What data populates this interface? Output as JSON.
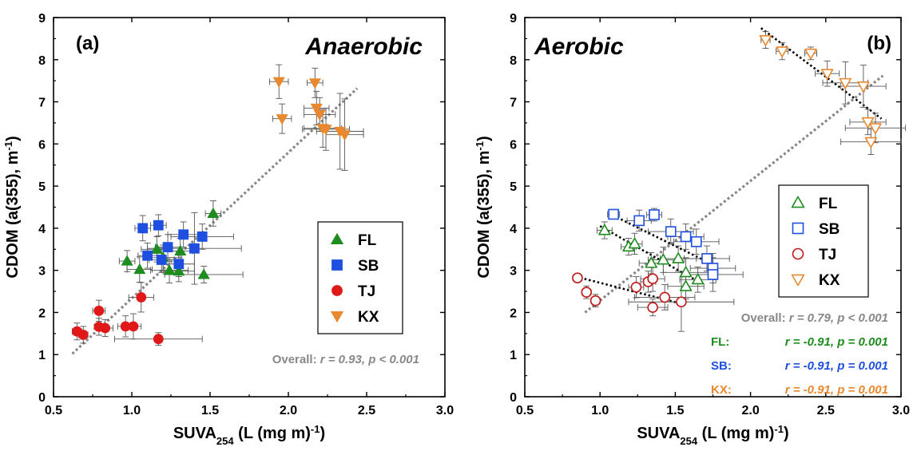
{
  "chart_data": [
    {
      "type": "scatter",
      "panel_label": "(a)",
      "condition_label": "Anaerobic",
      "xlabel_main": "SUVA",
      "xlabel_sub": "254",
      "xlabel_tail": " (L (mg m)",
      "xlabel_sup": "-1",
      "xlabel_end": ")",
      "ylabel_main": "CDOM (a(355), m",
      "ylabel_sup": "-1",
      "ylabel_end": ")",
      "xlim": [
        0.5,
        3.0
      ],
      "ylim": [
        0,
        9
      ],
      "xticks": [
        "0.5",
        "1.0",
        "1.5",
        "2.0",
        "2.5",
        "3.0"
      ],
      "yticks": [
        "0",
        "1",
        "2",
        "3",
        "4",
        "5",
        "6",
        "7",
        "8",
        "9"
      ],
      "legend_position": "center-right",
      "grid": false,
      "colors": {
        "FL": "#1e8c1e",
        "SB": "#1f4fe0",
        "TJ": "#e01818",
        "KX": "#e8892f",
        "overall": "#888888"
      },
      "marker_style": "filled",
      "series": [
        {
          "name": "FL",
          "marker": "triangle-up",
          "points": [
            {
              "x": 0.97,
              "y": 3.22,
              "xe": 0.05,
              "ye": 0.25
            },
            {
              "x": 1.05,
              "y": 3.02,
              "xe": 0.08,
              "ye": 0.3
            },
            {
              "x": 1.16,
              "y": 3.5,
              "xe": 0.1,
              "ye": 0.3
            },
            {
              "x": 1.2,
              "y": 3.3,
              "xe": 0.12,
              "ye": 0.3
            },
            {
              "x": 1.24,
              "y": 3.0,
              "xe": 0.12,
              "ye": 0.3
            },
            {
              "x": 1.3,
              "y": 2.98,
              "xe": 0.1,
              "ye": 0.25
            },
            {
              "x": 1.31,
              "y": 3.46,
              "xe": 0.08,
              "ye": 0.3
            },
            {
              "x": 1.46,
              "y": 2.9,
              "xe": 0.25,
              "ye": 0.2
            },
            {
              "x": 1.52,
              "y": 4.35,
              "xe": 0.05,
              "ye": 0.3
            }
          ]
        },
        {
          "name": "SB",
          "marker": "square",
          "points": [
            {
              "x": 1.07,
              "y": 4.0,
              "xe": 0.05,
              "ye": 0.3
            },
            {
              "x": 1.1,
              "y": 3.35,
              "xe": 0.06,
              "ye": 0.3
            },
            {
              "x": 1.17,
              "y": 4.07,
              "xe": 0.05,
              "ye": 0.25
            },
            {
              "x": 1.19,
              "y": 3.25,
              "xe": 0.08,
              "ye": 0.3
            },
            {
              "x": 1.23,
              "y": 3.55,
              "xe": 0.08,
              "ye": 0.3
            },
            {
              "x": 1.3,
              "y": 3.15,
              "xe": 0.1,
              "ye": 0.3
            },
            {
              "x": 1.33,
              "y": 3.85,
              "xe": 0.1,
              "ye": 0.3
            },
            {
              "x": 1.4,
              "y": 3.52,
              "xe": 0.3,
              "ye": 0.85
            },
            {
              "x": 1.45,
              "y": 3.8,
              "xe": 0.2,
              "ye": 0.3
            }
          ]
        },
        {
          "name": "TJ",
          "marker": "circle",
          "points": [
            {
              "x": 0.65,
              "y": 1.55,
              "xe": 0.03,
              "ye": 0.2
            },
            {
              "x": 0.69,
              "y": 1.47,
              "xe": 0.03,
              "ye": 0.2
            },
            {
              "x": 0.79,
              "y": 2.04,
              "xe": 0.04,
              "ye": 0.25
            },
            {
              "x": 0.79,
              "y": 1.66,
              "xe": 0.03,
              "ye": 0.2
            },
            {
              "x": 0.83,
              "y": 1.63,
              "xe": 0.05,
              "ye": 0.2
            },
            {
              "x": 0.96,
              "y": 1.67,
              "xe": 0.05,
              "ye": 0.25
            },
            {
              "x": 1.01,
              "y": 1.67,
              "xe": 0.05,
              "ye": 0.3
            },
            {
              "x": 1.06,
              "y": 2.36,
              "xe": 0.08,
              "ye": 0.35
            },
            {
              "x": 1.17,
              "y": 1.37,
              "xe": 0.28,
              "ye": 0.15
            }
          ]
        },
        {
          "name": "KX",
          "marker": "triangle-down",
          "points": [
            {
              "x": 1.94,
              "y": 7.48,
              "xe": 0.06,
              "ye": 0.4
            },
            {
              "x": 1.96,
              "y": 6.6,
              "xe": 0.06,
              "ye": 0.35
            },
            {
              "x": 2.17,
              "y": 7.45,
              "xe": 0.05,
              "ye": 0.35
            },
            {
              "x": 2.18,
              "y": 6.85,
              "xe": 0.08,
              "ye": 0.4
            },
            {
              "x": 2.2,
              "y": 6.7,
              "xe": 0.1,
              "ye": 0.4
            },
            {
              "x": 2.22,
              "y": 6.37,
              "xe": 0.12,
              "ye": 0.45
            },
            {
              "x": 2.24,
              "y": 6.35,
              "xe": 0.15,
              "ye": 0.5
            },
            {
              "x": 2.33,
              "y": 6.3,
              "xe": 0.15,
              "ye": 0.9
            },
            {
              "x": 2.36,
              "y": 6.22,
              "xe": 0.12,
              "ye": 0.85
            }
          ]
        }
      ],
      "overall_fit": {
        "x": [
          0.62,
          2.44
        ],
        "y": [
          1.02,
          7.32
        ]
      },
      "stats": [
        {
          "label": "Overall:",
          "text": "r = 0.93, p < 0.001",
          "color": "#888888"
        }
      ]
    },
    {
      "type": "scatter",
      "panel_label": "(b)",
      "condition_label": "Aerobic",
      "xlabel_main": "SUVA",
      "xlabel_sub": "254",
      "xlabel_tail": " (L (mg m)",
      "xlabel_sup": "-1",
      "xlabel_end": ")",
      "ylabel_main": "CDOM (a(355), m",
      "ylabel_sup": "-1",
      "ylabel_end": ")",
      "xlim": [
        0.5,
        3.0
      ],
      "ylim": [
        0,
        9
      ],
      "xticks": [
        "0.5",
        "1.0",
        "1.5",
        "2.0",
        "2.5",
        "3.0"
      ],
      "yticks": [
        "0",
        "1",
        "2",
        "3",
        "4",
        "5",
        "6",
        "7",
        "8",
        "9"
      ],
      "legend_position": "center-right",
      "grid": false,
      "colors": {
        "FL": "#1e8c1e",
        "SB": "#1f4fe0",
        "TJ": "#c01818",
        "KX": "#e8892f",
        "overall": "#888888"
      },
      "marker_style": "open",
      "series": [
        {
          "name": "FL",
          "marker": "triangle-up",
          "points": [
            {
              "x": 1.03,
              "y": 3.95,
              "xe": 0.05,
              "ye": 0.2
            },
            {
              "x": 1.19,
              "y": 3.56,
              "xe": 0.05,
              "ye": 0.2
            },
            {
              "x": 1.23,
              "y": 3.63,
              "xe": 0.05,
              "ye": 0.25
            },
            {
              "x": 1.34,
              "y": 3.17,
              "xe": 0.08,
              "ye": 0.25
            },
            {
              "x": 1.42,
              "y": 3.25,
              "xe": 0.1,
              "ye": 0.3
            },
            {
              "x": 1.52,
              "y": 3.28,
              "xe": 0.12,
              "ye": 0.3
            },
            {
              "x": 1.57,
              "y": 2.95,
              "xe": 0.15,
              "ye": 0.35
            },
            {
              "x": 1.57,
              "y": 2.62,
              "xe": 0.12,
              "ye": 0.3
            },
            {
              "x": 1.65,
              "y": 2.78,
              "xe": 0.12,
              "ye": 0.3
            }
          ]
        },
        {
          "name": "SB",
          "marker": "square",
          "points": [
            {
              "x": 1.09,
              "y": 4.33,
              "xe": 0.04,
              "ye": 0.1
            },
            {
              "x": 1.26,
              "y": 4.18,
              "xe": 0.08,
              "ye": 0.25
            },
            {
              "x": 1.36,
              "y": 4.32,
              "xe": 0.05,
              "ye": 0.15
            },
            {
              "x": 1.47,
              "y": 3.92,
              "xe": 0.15,
              "ye": 0.3
            },
            {
              "x": 1.57,
              "y": 3.8,
              "xe": 0.12,
              "ye": 0.3
            },
            {
              "x": 1.64,
              "y": 3.68,
              "xe": 0.15,
              "ye": 0.3
            },
            {
              "x": 1.71,
              "y": 3.28,
              "xe": 0.15,
              "ye": 0.3
            },
            {
              "x": 1.75,
              "y": 3.05,
              "xe": 0.15,
              "ye": 0.35
            },
            {
              "x": 1.75,
              "y": 2.9,
              "xe": 0.2,
              "ye": 0.4
            }
          ]
        },
        {
          "name": "TJ",
          "marker": "circle",
          "points": [
            {
              "x": 0.85,
              "y": 2.82,
              "xe": 0.03,
              "ye": 0.1
            },
            {
              "x": 0.91,
              "y": 2.48,
              "xe": 0.03,
              "ye": 0.15
            },
            {
              "x": 0.97,
              "y": 2.28,
              "xe": 0.03,
              "ye": 0.15
            },
            {
              "x": 1.24,
              "y": 2.6,
              "xe": 0.05,
              "ye": 0.25
            },
            {
              "x": 1.32,
              "y": 2.73,
              "xe": 0.05,
              "ye": 0.25
            },
            {
              "x": 1.35,
              "y": 2.12,
              "xe": 0.1,
              "ye": 0.2
            },
            {
              "x": 1.35,
              "y": 2.8,
              "xe": 0.08,
              "ye": 0.3
            },
            {
              "x": 1.43,
              "y": 2.36,
              "xe": 0.2,
              "ye": 0.3
            },
            {
              "x": 1.54,
              "y": 2.25,
              "xe": 0.35,
              "ye": 0.7
            }
          ]
        },
        {
          "name": "KX",
          "marker": "triangle-down",
          "points": [
            {
              "x": 2.1,
              "y": 8.47,
              "xe": 0.03,
              "ye": 0.2
            },
            {
              "x": 2.21,
              "y": 8.2,
              "xe": 0.04,
              "ye": 0.2
            },
            {
              "x": 2.4,
              "y": 8.15,
              "xe": 0.04,
              "ye": 0.15
            },
            {
              "x": 2.51,
              "y": 7.67,
              "xe": 0.08,
              "ye": 0.3
            },
            {
              "x": 2.63,
              "y": 7.45,
              "xe": 0.15,
              "ye": 0.5
            },
            {
              "x": 2.75,
              "y": 7.37,
              "xe": 0.15,
              "ye": 0.5
            },
            {
              "x": 2.78,
              "y": 6.52,
              "xe": 0.12,
              "ye": 0.3
            },
            {
              "x": 2.8,
              "y": 6.05,
              "xe": 0.2,
              "ye": 0.3
            },
            {
              "x": 2.83,
              "y": 6.38,
              "xe": 0.2,
              "ye": 0.35
            }
          ]
        }
      ],
      "overall_fit": {
        "x": [
          0.9,
          2.88
        ],
        "y": [
          2.0,
          7.62
        ]
      },
      "group_fits": [
        {
          "name": "FL",
          "x": [
            1.0,
            1.68
          ],
          "y": [
            4.05,
            2.68
          ]
        },
        {
          "name": "SB",
          "x": [
            1.06,
            1.77
          ],
          "y": [
            4.35,
            3.1
          ]
        },
        {
          "name": "TJ",
          "x": [
            0.84,
            1.55
          ],
          "y": [
            2.85,
            2.2
          ]
        },
        {
          "name": "KX",
          "x": [
            2.07,
            2.87
          ],
          "y": [
            8.75,
            6.6
          ]
        }
      ],
      "stats": [
        {
          "label": "Overall:",
          "text": "r = 0.79, p < 0.001",
          "color": "#888888"
        },
        {
          "label": "FL:",
          "text": "r = -0.91, p = 0.001",
          "color": "#1e8c1e"
        },
        {
          "label": "SB:",
          "text": "r = -0.91, p = 0.001",
          "color": "#1f4fe0"
        },
        {
          "label": "KX:",
          "text": "r = -0.91, p = 0.001",
          "color": "#e8892f"
        }
      ]
    }
  ]
}
